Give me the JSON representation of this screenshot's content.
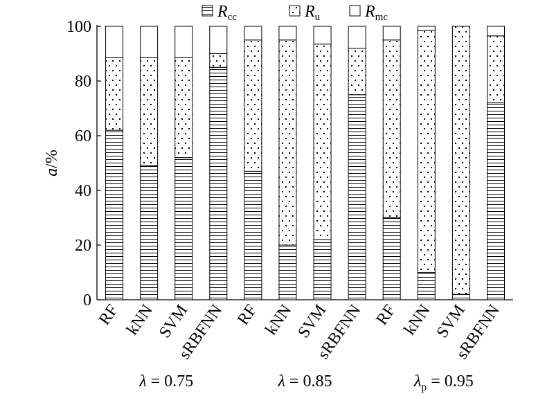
{
  "chart_data": {
    "type": "bar",
    "stacked": true,
    "ylabel": {
      "italic": "a",
      "rest": "/%"
    },
    "ylim": [
      0,
      100
    ],
    "yticks": [
      "0",
      "20",
      "40",
      "60",
      "80",
      "100"
    ],
    "categories": [
      "RF",
      "kNN",
      "SVM",
      "sRBFNN",
      "RF",
      "kNN",
      "SVM",
      "sRBFNN",
      "RF",
      "kNN",
      "SVM",
      "sRBFNN"
    ],
    "groups": [
      {
        "symbol": "λ",
        "sub": "",
        "text": " = 0.75"
      },
      {
        "symbol": "λ",
        "sub": "",
        "text": " = 0.85"
      },
      {
        "symbol": "λ",
        "sub": "p",
        "text": " = 0.95"
      }
    ],
    "legend": [
      {
        "italic": "R",
        "sub": "cc",
        "pattern": "hlines"
      },
      {
        "italic": "R",
        "sub": "u",
        "pattern": "dots"
      },
      {
        "italic": "R",
        "sub": "mc",
        "pattern": "blank"
      }
    ],
    "series": [
      {
        "name": "Rcc",
        "pattern": "hlines",
        "values": [
          62,
          49,
          52,
          85,
          47,
          20,
          22,
          75,
          30,
          10,
          2,
          72
        ]
      },
      {
        "name": "Ru",
        "pattern": "dots",
        "values": [
          26.5,
          39.5,
          36.5,
          5,
          48,
          75,
          71.5,
          17,
          65,
          88.5,
          98,
          24.5
        ]
      },
      {
        "name": "Rmc",
        "pattern": "blank",
        "values": [
          11.5,
          11.5,
          11.5,
          10,
          5,
          5,
          6.5,
          8,
          5,
          1.5,
          0,
          3.5
        ]
      }
    ],
    "grid": false
  }
}
